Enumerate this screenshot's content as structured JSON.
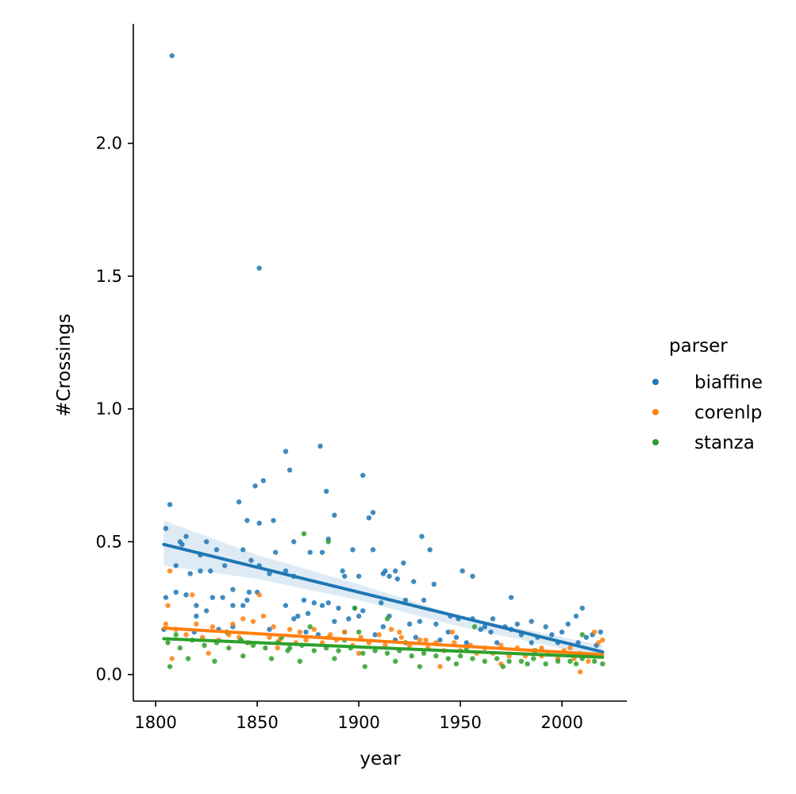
{
  "chart_data": {
    "type": "scatter",
    "xlabel": "year",
    "ylabel": "#Crossings",
    "xlim": [
      1789,
      2032
    ],
    "ylim": [
      -0.1,
      2.45
    ],
    "xticks": [
      1800,
      1850,
      1900,
      1950,
      2000
    ],
    "yticks": [
      0.0,
      0.5,
      1.0,
      1.5,
      2.0
    ],
    "xtick_labels": [
      "1800",
      "1850",
      "1900",
      "1950",
      "2000"
    ],
    "ytick_labels": [
      "0.0",
      "0.5",
      "1.0",
      "1.5",
      "2.0"
    ],
    "legend": {
      "title": "parser",
      "placement": "right"
    },
    "series": [
      {
        "name": "biaffine",
        "color": "#1f77b4",
        "trend": {
          "x": [
            1804,
            2020
          ],
          "y": [
            0.49,
            0.085
          ]
        },
        "ci_band": {
          "x": [
            1804,
            1850,
            1900,
            1950,
            2020
          ],
          "upper": [
            0.58,
            0.45,
            0.34,
            0.22,
            0.11
          ],
          "lower": [
            0.41,
            0.36,
            0.28,
            0.18,
            0.065
          ]
        },
        "points": [
          [
            1808,
            2.33
          ],
          [
            1851,
            1.53
          ],
          [
            1881,
            0.86
          ],
          [
            1864,
            0.84
          ],
          [
            1866,
            0.77
          ],
          [
            1902,
            0.75
          ],
          [
            1853,
            0.73
          ],
          [
            1849,
            0.71
          ],
          [
            1884,
            0.69
          ],
          [
            1841,
            0.65
          ],
          [
            1807,
            0.64
          ],
          [
            1907,
            0.61
          ],
          [
            1905,
            0.59
          ],
          [
            1888,
            0.6
          ],
          [
            1845,
            0.58
          ],
          [
            1858,
            0.58
          ],
          [
            1851,
            0.57
          ],
          [
            1805,
            0.55
          ],
          [
            1815,
            0.52
          ],
          [
            1931,
            0.52
          ],
          [
            1885,
            0.51
          ],
          [
            1812,
            0.5
          ],
          [
            1825,
            0.5
          ],
          [
            1868,
            0.5
          ],
          [
            1813,
            0.49
          ],
          [
            1830,
            0.47
          ],
          [
            1843,
            0.47
          ],
          [
            1876,
            0.46
          ],
          [
            1859,
            0.46
          ],
          [
            1882,
            0.46
          ],
          [
            1897,
            0.47
          ],
          [
            1907,
            0.47
          ],
          [
            1935,
            0.47
          ],
          [
            1822,
            0.45
          ],
          [
            1851,
            0.41
          ],
          [
            1834,
            0.41
          ],
          [
            1847,
            0.43
          ],
          [
            1922,
            0.42
          ],
          [
            1810,
            0.41
          ],
          [
            1817,
            0.38
          ],
          [
            1822,
            0.39
          ],
          [
            1827,
            0.39
          ],
          [
            1856,
            0.38
          ],
          [
            1864,
            0.39
          ],
          [
            1868,
            0.37
          ],
          [
            1892,
            0.39
          ],
          [
            1893,
            0.37
          ],
          [
            1900,
            0.37
          ],
          [
            1913,
            0.39
          ],
          [
            1918,
            0.39
          ],
          [
            1912,
            0.38
          ],
          [
            1915,
            0.37
          ],
          [
            1919,
            0.36
          ],
          [
            1951,
            0.39
          ],
          [
            1956,
            0.37
          ],
          [
            1937,
            0.34
          ],
          [
            1927,
            0.35
          ],
          [
            1838,
            0.32
          ],
          [
            1846,
            0.31
          ],
          [
            1850,
            0.31
          ],
          [
            1810,
            0.31
          ],
          [
            1815,
            0.3
          ],
          [
            1828,
            0.29
          ],
          [
            1833,
            0.29
          ],
          [
            1805,
            0.29
          ],
          [
            1873,
            0.28
          ],
          [
            1878,
            0.27
          ],
          [
            1882,
            0.26
          ],
          [
            1885,
            0.27
          ],
          [
            1890,
            0.25
          ],
          [
            1898,
            0.25
          ],
          [
            1902,
            0.24
          ],
          [
            1911,
            0.27
          ],
          [
            1923,
            0.28
          ],
          [
            1932,
            0.28
          ],
          [
            1975,
            0.29
          ],
          [
            1864,
            0.26
          ],
          [
            1820,
            0.26
          ],
          [
            1825,
            0.24
          ],
          [
            1820,
            0.22
          ],
          [
            1838,
            0.26
          ],
          [
            1843,
            0.26
          ],
          [
            1845,
            0.28
          ],
          [
            1870,
            0.22
          ],
          [
            1868,
            0.21
          ],
          [
            1875,
            0.23
          ],
          [
            1888,
            0.2
          ],
          [
            1895,
            0.21
          ],
          [
            1900,
            0.22
          ],
          [
            1915,
            0.22
          ],
          [
            1925,
            0.19
          ],
          [
            1930,
            0.2
          ],
          [
            1938,
            0.19
          ],
          [
            1945,
            0.22
          ],
          [
            1949,
            0.21
          ],
          [
            1956,
            0.21
          ],
          [
            1966,
            0.21
          ],
          [
            1972,
            0.18
          ],
          [
            1978,
            0.19
          ],
          [
            1985,
            0.2
          ],
          [
            1992,
            0.18
          ],
          [
            2003,
            0.19
          ],
          [
            2007,
            0.22
          ],
          [
            2010,
            0.25
          ],
          [
            1960,
            0.17
          ],
          [
            1962,
            0.18
          ],
          [
            1965,
            0.16
          ],
          [
            1975,
            0.17
          ],
          [
            1980,
            0.15
          ],
          [
            1988,
            0.14
          ],
          [
            1995,
            0.15
          ],
          [
            2000,
            0.16
          ],
          [
            2012,
            0.14
          ],
          [
            2015,
            0.15
          ],
          [
            2019,
            0.16
          ],
          [
            1831,
            0.17
          ],
          [
            1838,
            0.18
          ],
          [
            1856,
            0.17
          ],
          [
            1874,
            0.16
          ],
          [
            1880,
            0.15
          ],
          [
            1893,
            0.16
          ],
          [
            1908,
            0.15
          ],
          [
            1918,
            0.13
          ],
          [
            1928,
            0.14
          ],
          [
            1940,
            0.13
          ],
          [
            1948,
            0.14
          ],
          [
            1953,
            0.12
          ],
          [
            1968,
            0.12
          ],
          [
            1985,
            0.12
          ],
          [
            1998,
            0.12
          ],
          [
            2008,
            0.12
          ],
          [
            2017,
            0.11
          ],
          [
            1804,
            0.17
          ],
          [
            1819,
            0.16
          ],
          [
            1912,
            0.18
          ],
          [
            1944,
            0.16
          ]
        ]
      },
      {
        "name": "corenlp",
        "color": "#ff7f0e",
        "trend": {
          "x": [
            1804,
            2020
          ],
          "y": [
            0.175,
            0.075
          ]
        },
        "points": [
          [
            1807,
            0.39
          ],
          [
            1818,
            0.3
          ],
          [
            1851,
            0.3
          ],
          [
            1806,
            0.26
          ],
          [
            1843,
            0.21
          ],
          [
            1853,
            0.22
          ],
          [
            1820,
            0.19
          ],
          [
            1828,
            0.18
          ],
          [
            1838,
            0.19
          ],
          [
            1848,
            0.2
          ],
          [
            1858,
            0.18
          ],
          [
            1866,
            0.17
          ],
          [
            1871,
            0.16
          ],
          [
            1878,
            0.17
          ],
          [
            1886,
            0.15
          ],
          [
            1893,
            0.16
          ],
          [
            1901,
            0.14
          ],
          [
            1910,
            0.15
          ],
          [
            1916,
            0.17
          ],
          [
            1921,
            0.14
          ],
          [
            1930,
            0.13
          ],
          [
            1938,
            0.12
          ],
          [
            1946,
            0.16
          ],
          [
            1955,
            0.11
          ],
          [
            1962,
            0.1
          ],
          [
            1970,
            0.11
          ],
          [
            1978,
            0.1
          ],
          [
            1986,
            0.09
          ],
          [
            1993,
            0.08
          ],
          [
            2001,
            0.09
          ],
          [
            2009,
            0.08
          ],
          [
            2016,
            0.16
          ],
          [
            2020,
            0.13
          ],
          [
            1805,
            0.19
          ],
          [
            1810,
            0.17
          ],
          [
            1815,
            0.15
          ],
          [
            1823,
            0.14
          ],
          [
            1831,
            0.13
          ],
          [
            1836,
            0.15
          ],
          [
            1841,
            0.14
          ],
          [
            1846,
            0.12
          ],
          [
            1856,
            0.14
          ],
          [
            1861,
            0.13
          ],
          [
            1869,
            0.12
          ],
          [
            1874,
            0.13
          ],
          [
            1882,
            0.12
          ],
          [
            1889,
            0.13
          ],
          [
            1897,
            0.11
          ],
          [
            1905,
            0.12
          ],
          [
            1913,
            0.11
          ],
          [
            1925,
            0.11
          ],
          [
            1934,
            0.1
          ],
          [
            1942,
            0.09
          ],
          [
            1950,
            0.09
          ],
          [
            1958,
            0.08
          ],
          [
            1966,
            0.08
          ],
          [
            1974,
            0.07
          ],
          [
            1982,
            0.07
          ],
          [
            1990,
            0.07
          ],
          [
            1998,
            0.06
          ],
          [
            2006,
            0.06
          ],
          [
            2013,
            0.05
          ],
          [
            2009,
            0.01
          ],
          [
            1808,
            0.06
          ],
          [
            1826,
            0.08
          ],
          [
            1860,
            0.1
          ],
          [
            1900,
            0.08
          ],
          [
            1940,
            0.03
          ],
          [
            1970,
            0.04
          ],
          [
            2018,
            0.12
          ],
          [
            1933,
            0.13
          ],
          [
            1947,
            0.12
          ],
          [
            1885,
            0.14
          ],
          [
            1920,
            0.16
          ],
          [
            1990,
            0.1
          ],
          [
            2004,
            0.1
          ]
        ]
      },
      {
        "name": "stanza",
        "color": "#2ca02c",
        "trend": {
          "x": [
            1804,
            2020
          ],
          "y": [
            0.135,
            0.065
          ]
        },
        "points": [
          [
            1873,
            0.53
          ],
          [
            1885,
            0.5
          ],
          [
            1898,
            0.25
          ],
          [
            1914,
            0.21
          ],
          [
            1876,
            0.18
          ],
          [
            1957,
            0.18
          ],
          [
            1806,
            0.12
          ],
          [
            1812,
            0.1
          ],
          [
            1818,
            0.13
          ],
          [
            1824,
            0.11
          ],
          [
            1830,
            0.12
          ],
          [
            1836,
            0.1
          ],
          [
            1842,
            0.13
          ],
          [
            1848,
            0.11
          ],
          [
            1854,
            0.1
          ],
          [
            1860,
            0.12
          ],
          [
            1866,
            0.1
          ],
          [
            1872,
            0.11
          ],
          [
            1878,
            0.09
          ],
          [
            1884,
            0.1
          ],
          [
            1890,
            0.09
          ],
          [
            1896,
            0.1
          ],
          [
            1902,
            0.08
          ],
          [
            1908,
            0.09
          ],
          [
            1914,
            0.08
          ],
          [
            1920,
            0.09
          ],
          [
            1926,
            0.07
          ],
          [
            1932,
            0.08
          ],
          [
            1938,
            0.07
          ],
          [
            1944,
            0.06
          ],
          [
            1950,
            0.07
          ],
          [
            1956,
            0.06
          ],
          [
            1962,
            0.05
          ],
          [
            1968,
            0.06
          ],
          [
            1974,
            0.05
          ],
          [
            1980,
            0.05
          ],
          [
            1986,
            0.06
          ],
          [
            1992,
            0.04
          ],
          [
            1998,
            0.05
          ],
          [
            2004,
            0.05
          ],
          [
            2010,
            0.06
          ],
          [
            2016,
            0.05
          ],
          [
            1807,
            0.03
          ],
          [
            1816,
            0.06
          ],
          [
            1829,
            0.05
          ],
          [
            1843,
            0.07
          ],
          [
            1857,
            0.06
          ],
          [
            1871,
            0.05
          ],
          [
            1888,
            0.06
          ],
          [
            1903,
            0.03
          ],
          [
            1918,
            0.05
          ],
          [
            1930,
            0.03
          ],
          [
            1948,
            0.04
          ],
          [
            1971,
            0.03
          ],
          [
            1983,
            0.04
          ],
          [
            2007,
            0.04
          ],
          [
            2020,
            0.04
          ],
          [
            1810,
            0.15
          ],
          [
            1835,
            0.16
          ],
          [
            1862,
            0.14
          ],
          [
            1893,
            0.13
          ],
          [
            1923,
            0.12
          ],
          [
            1953,
            0.1
          ],
          [
            1987,
            0.09
          ],
          [
            2010,
            0.15
          ],
          [
            1900,
            0.16
          ],
          [
            1865,
            0.09
          ],
          [
            1845,
            0.12
          ]
        ]
      }
    ]
  }
}
